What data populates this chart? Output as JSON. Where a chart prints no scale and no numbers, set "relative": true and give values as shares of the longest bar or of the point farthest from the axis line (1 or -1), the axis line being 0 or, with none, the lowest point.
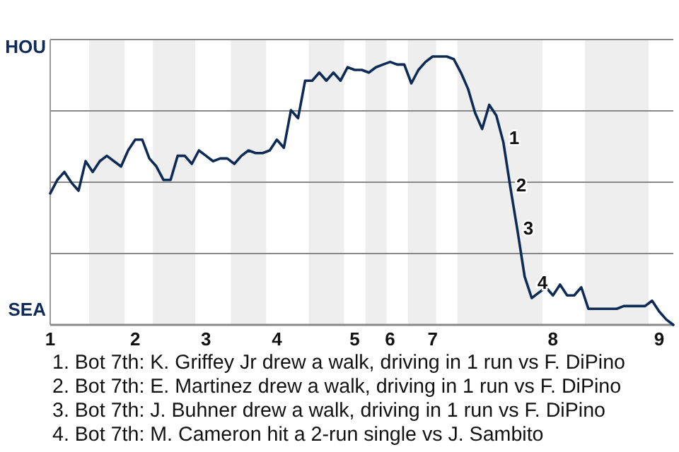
{
  "chart_data": {
    "type": "line",
    "relative": true,
    "categories": [
      "1",
      null,
      null,
      null,
      null,
      null,
      null,
      null,
      null,
      null,
      null,
      null,
      "2",
      null,
      null,
      null,
      null,
      null,
      null,
      null,
      null,
      null,
      "3",
      null,
      null,
      null,
      null,
      null,
      null,
      null,
      null,
      null,
      "4",
      null,
      null,
      null,
      null,
      null,
      null,
      null,
      null,
      null,
      null,
      "5",
      null,
      null,
      null,
      null,
      "6",
      null,
      null,
      null,
      null,
      null,
      "7",
      null,
      null,
      null,
      null,
      null,
      null,
      null,
      null,
      null,
      null,
      null,
      null,
      null,
      null,
      null,
      null,
      "8",
      null,
      null,
      null,
      null,
      null,
      null,
      null,
      null,
      null,
      null,
      null,
      null,
      null,
      null,
      "9",
      null,
      null
    ],
    "grid": "y",
    "marker": "none",
    "line_style": "solid",
    "series": [
      {
        "color": "#0d2b56",
        "values": [
          0.49,
          0.54,
          0.57,
          0.53,
          0.5,
          0.61,
          0.57,
          0.61,
          0.63,
          0.61,
          0.59,
          0.65,
          0.69,
          0.69,
          0.62,
          0.59,
          0.54,
          0.54,
          0.63,
          0.63,
          0.6,
          0.65,
          0.63,
          0.61,
          0.62,
          0.62,
          0.6,
          0.63,
          0.65,
          0.64,
          0.64,
          0.65,
          0.69,
          0.66,
          0.8,
          0.77,
          0.91,
          0.91,
          0.94,
          0.91,
          0.94,
          0.91,
          0.96,
          0.95,
          0.95,
          0.94,
          0.96,
          0.97,
          0.98,
          0.97,
          0.97,
          0.9,
          0.95,
          0.98,
          1.0,
          1.0,
          1.0,
          0.99,
          0.94,
          0.88,
          0.79,
          0.73,
          0.82,
          0.78,
          0.68,
          0.51,
          0.35,
          0.18,
          0.1,
          0.12,
          0.14,
          0.11,
          0.15,
          0.11,
          0.11,
          0.14,
          0.06,
          0.06,
          0.06,
          0.06,
          0.06,
          0.07,
          0.07,
          0.07,
          0.07,
          0.09,
          0.05,
          0.02,
          0.0
        ]
      }
    ],
    "annotations": [
      "HOU",
      "SEA",
      "1",
      "2",
      "3",
      "4",
      "1. Bot 7th: K. Griffey Jr drew a walk, driving in 1 run vs F. DiPino",
      "2. Bot 7th: E. Martinez drew a walk, driving in 1 run vs F. DiPino",
      "3. Bot 7th: J. Buhner drew a walk, driving in 1 run vs F. DiPino",
      "4. Bot 7th: M. Cameron hit a 2-run single vs J. Sambito"
    ]
  }
}
